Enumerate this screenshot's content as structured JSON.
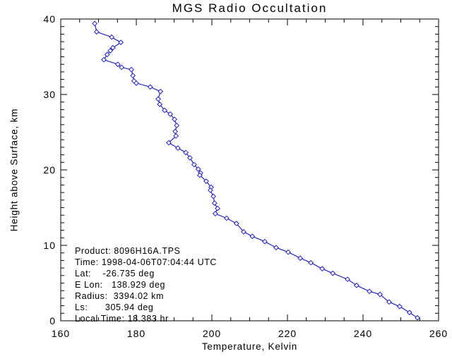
{
  "chart_data": {
    "type": "line",
    "title": "MGS Radio Occultation",
    "xlabel": "Temperature, Kelvin",
    "ylabel": "Height above Surface, km",
    "xlim": [
      160,
      260
    ],
    "ylim": [
      0,
      40
    ],
    "x_ticks": [
      160,
      180,
      200,
      220,
      240,
      260
    ],
    "y_ticks": [
      0,
      10,
      20,
      30,
      40
    ],
    "x_minor_step": 5,
    "y_minor_step": 1,
    "grid": false,
    "legend": "none",
    "marker": "open-diamond",
    "line_color": "#2424c0",
    "axis_color": "#000000",
    "background_color": "#ffffff",
    "series": [
      {
        "name": "temperature-profile",
        "points": [
          [
            169.0,
            39.4
          ],
          [
            169.5,
            38.3
          ],
          [
            173.5,
            37.6
          ],
          [
            175.9,
            36.9
          ],
          [
            173.8,
            36.2
          ],
          [
            173.1,
            35.8
          ],
          [
            172.3,
            35.3
          ],
          [
            171.4,
            34.6
          ],
          [
            175.1,
            34.0
          ],
          [
            176.1,
            33.6
          ],
          [
            178.7,
            33.3
          ],
          [
            179.1,
            32.5
          ],
          [
            179.4,
            31.8
          ],
          [
            180.0,
            31.5
          ],
          [
            183.7,
            31.0
          ],
          [
            186.4,
            30.4
          ],
          [
            185.8,
            29.4
          ],
          [
            186.2,
            28.7
          ],
          [
            187.5,
            27.9
          ],
          [
            189.0,
            27.4
          ],
          [
            190.1,
            26.7
          ],
          [
            190.7,
            25.9
          ],
          [
            190.3,
            25.1
          ],
          [
            190.5,
            24.5
          ],
          [
            188.6,
            23.6
          ],
          [
            191.0,
            22.9
          ],
          [
            193.1,
            22.3
          ],
          [
            194.2,
            21.6
          ],
          [
            195.3,
            20.7
          ],
          [
            196.4,
            20.1
          ],
          [
            197.0,
            19.6
          ],
          [
            196.8,
            19.3
          ],
          [
            198.5,
            18.5
          ],
          [
            199.8,
            17.7
          ],
          [
            199.6,
            17.3
          ],
          [
            200.4,
            16.5
          ],
          [
            200.7,
            15.6
          ],
          [
            201.5,
            14.9
          ],
          [
            200.9,
            14.2
          ],
          [
            203.9,
            13.6
          ],
          [
            206.5,
            12.9
          ],
          [
            208.4,
            11.8
          ],
          [
            210.7,
            11.2
          ],
          [
            214.0,
            10.5
          ],
          [
            217.0,
            9.7
          ],
          [
            220.2,
            9.1
          ],
          [
            223.4,
            8.3
          ],
          [
            226.2,
            7.7
          ],
          [
            229.2,
            6.9
          ],
          [
            232.0,
            6.3
          ],
          [
            235.9,
            5.5
          ],
          [
            238.3,
            4.7
          ],
          [
            241.7,
            3.9
          ],
          [
            244.5,
            3.5
          ],
          [
            246.9,
            2.5
          ],
          [
            249.7,
            1.9
          ],
          [
            252.3,
            1.1
          ],
          [
            254.4,
            0.4
          ]
        ]
      }
    ]
  },
  "annotation": {
    "lines": [
      "Product: 8096H16A.TPS",
      "Time: 1998-04-06T07:04:44 UTC",
      "Lat:    -26.735 deg",
      "E Lon:   138.929 deg",
      "Radius:  3394.02 km",
      "Ls:      305.94 deg",
      "Local Time: 18.383 hr"
    ]
  }
}
